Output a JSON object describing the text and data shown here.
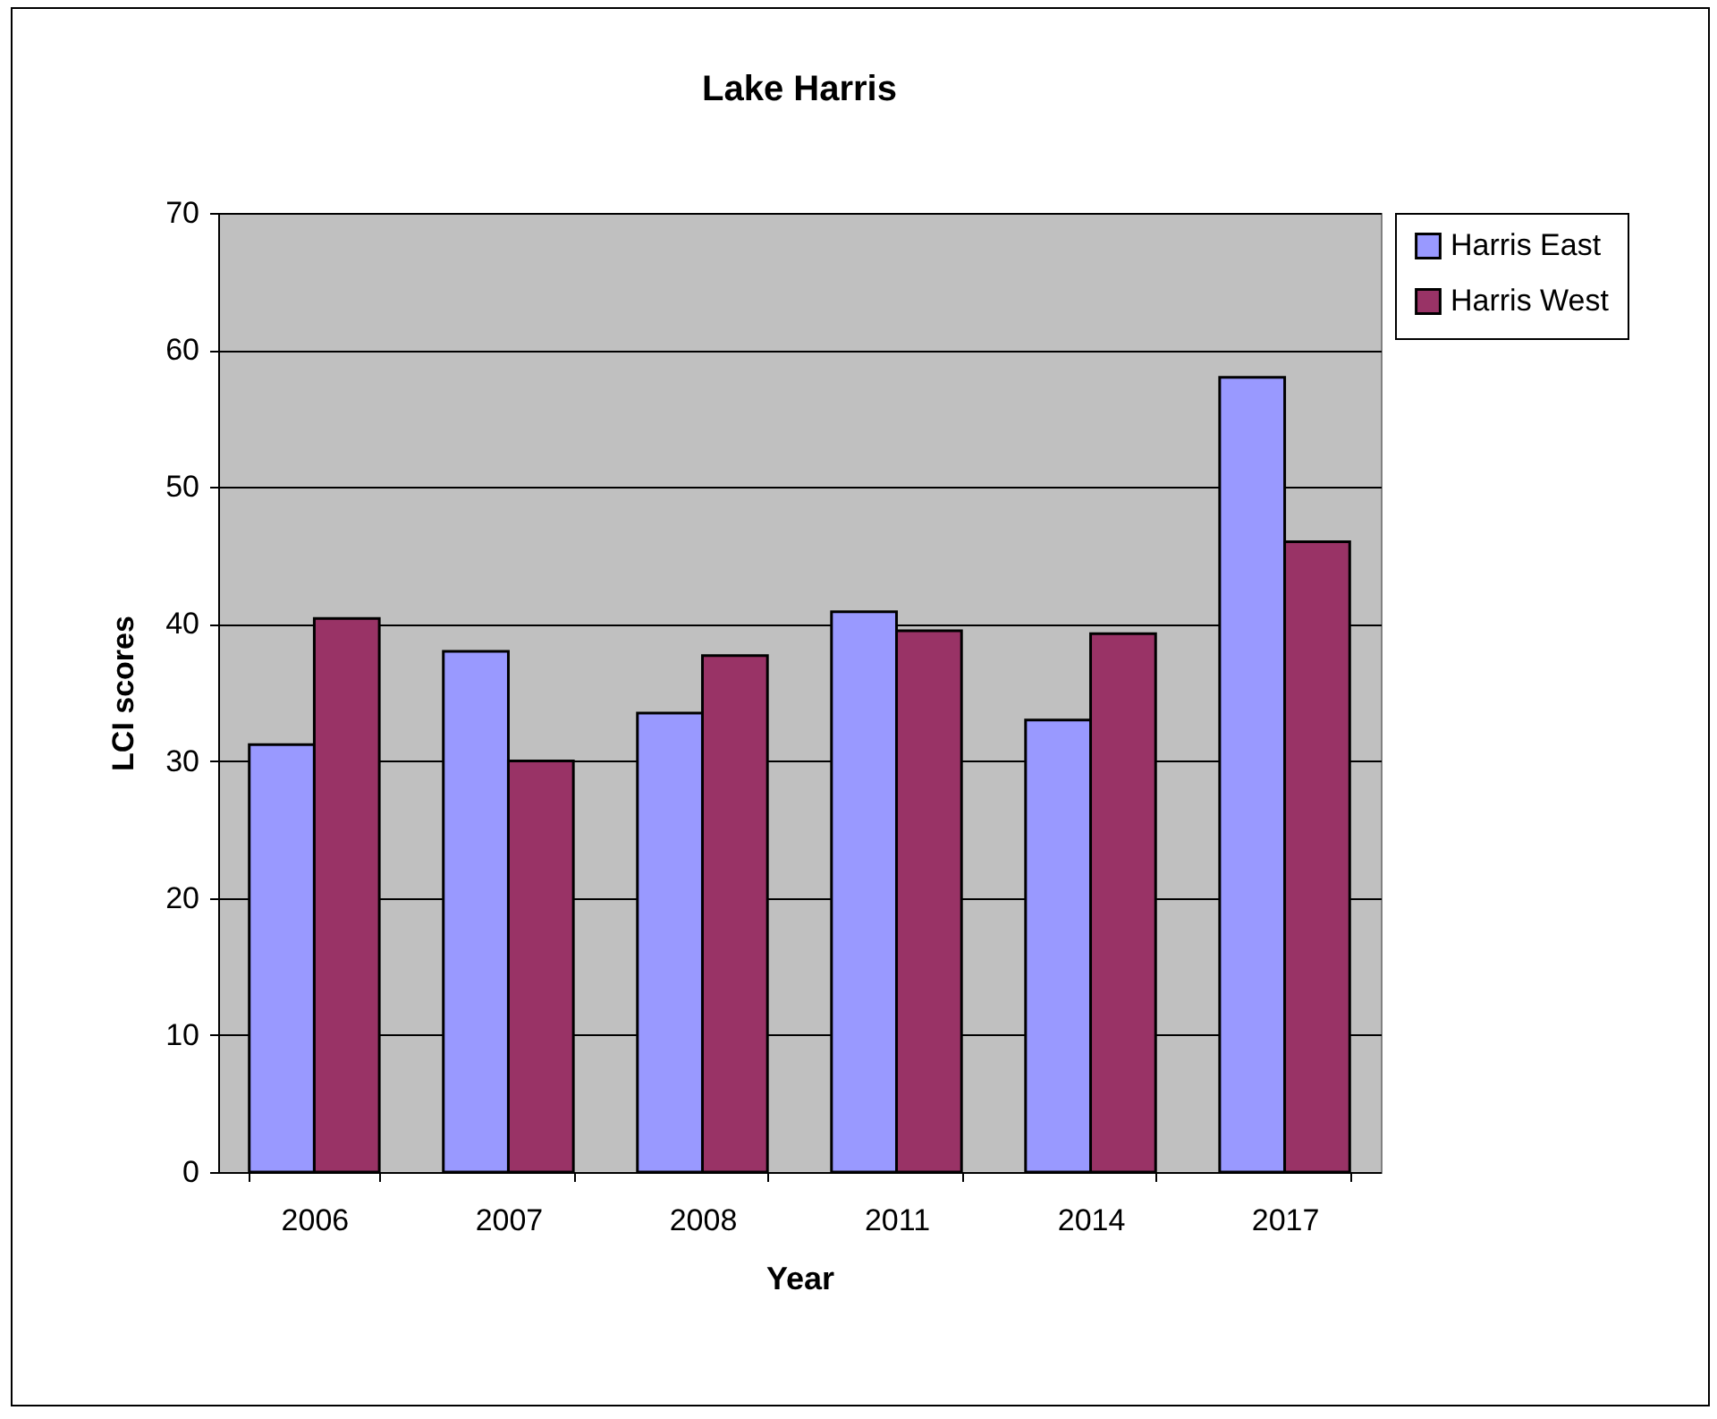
{
  "chart_data": {
    "type": "bar",
    "title": "Lake Harris",
    "xlabel": "Year",
    "ylabel": "LCI scores",
    "categories": [
      "2006",
      "2007",
      "2008",
      "2011",
      "2014",
      "2017"
    ],
    "series": [
      {
        "name": "Harris East",
        "color": "#9999ff",
        "values": [
          31.2,
          38.0,
          33.5,
          40.9,
          33.0,
          58.0
        ]
      },
      {
        "name": "Harris West",
        "color": "#993366",
        "values": [
          40.4,
          30.0,
          37.7,
          39.5,
          39.3,
          46.0
        ]
      }
    ],
    "ylim": [
      0,
      70
    ],
    "yticks": [
      0,
      10,
      20,
      30,
      40,
      50,
      60,
      70
    ],
    "grid": "y",
    "legend": "right"
  }
}
